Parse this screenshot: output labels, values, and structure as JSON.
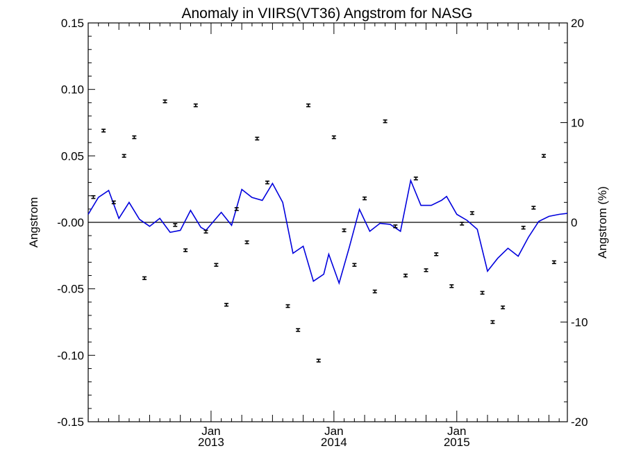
{
  "chart_data": {
    "type": "scatter",
    "title": "Anomaly in VIIRS(VT36) Angstrom for NASG",
    "ylabel_left": "Angstrom",
    "ylabel_right": "Angstrom (%)",
    "xlabel": "",
    "x_ticks": [
      {
        "month": "Jan",
        "year": "2013",
        "x": 2013.0
      },
      {
        "month": "Jan",
        "year": "2014",
        "x": 2014.0
      },
      {
        "month": "Jan",
        "year": "2015",
        "x": 2015.0
      }
    ],
    "xlim": [
      2012.0,
      2015.9
    ],
    "ylim_left": [
      -0.15,
      0.15
    ],
    "ylim_right": [
      -20,
      20
    ],
    "y_ticks_left": [
      "0.15",
      "0.10",
      "0.05",
      "-0.00",
      "-0.05",
      "-0.10",
      "-0.15"
    ],
    "y_ticks_right": [
      "20",
      "10",
      "0",
      "-10",
      "-20"
    ],
    "zero_line": 0,
    "error_bar_halfwidth": 0.001,
    "series": [
      {
        "kind": "points_with_error_bars",
        "color": "#000000",
        "points": [
          {
            "x": 2012.042,
            "y": 0.019
          },
          {
            "x": 2012.125,
            "y": 0.069
          },
          {
            "x": 2012.208,
            "y": 0.015
          },
          {
            "x": 2012.292,
            "y": 0.05
          },
          {
            "x": 2012.375,
            "y": 0.064
          },
          {
            "x": 2012.458,
            "y": -0.042
          },
          {
            "x": 2012.625,
            "y": 0.091
          },
          {
            "x": 2012.708,
            "y": -0.002
          },
          {
            "x": 2012.792,
            "y": -0.021
          },
          {
            "x": 2012.875,
            "y": 0.088
          },
          {
            "x": 2012.958,
            "y": -0.007
          },
          {
            "x": 2013.042,
            "y": -0.032
          },
          {
            "x": 2013.125,
            "y": -0.062
          },
          {
            "x": 2013.208,
            "y": 0.01
          },
          {
            "x": 2013.292,
            "y": -0.015
          },
          {
            "x": 2013.375,
            "y": 0.063
          },
          {
            "x": 2013.458,
            "y": 0.03
          },
          {
            "x": 2013.625,
            "y": -0.063
          },
          {
            "x": 2013.708,
            "y": -0.081
          },
          {
            "x": 2013.792,
            "y": 0.088
          },
          {
            "x": 2013.875,
            "y": -0.104
          },
          {
            "x": 2014.0,
            "y": 0.064
          },
          {
            "x": 2014.083,
            "y": -0.006
          },
          {
            "x": 2014.167,
            "y": -0.032
          },
          {
            "x": 2014.25,
            "y": 0.018
          },
          {
            "x": 2014.333,
            "y": -0.052
          },
          {
            "x": 2014.417,
            "y": 0.076
          },
          {
            "x": 2014.5,
            "y": -0.003
          },
          {
            "x": 2014.583,
            "y": -0.04
          },
          {
            "x": 2014.667,
            "y": 0.033
          },
          {
            "x": 2014.75,
            "y": -0.036
          },
          {
            "x": 2014.833,
            "y": -0.024
          },
          {
            "x": 2014.958,
            "y": -0.048
          },
          {
            "x": 2015.042,
            "y": -0.001
          },
          {
            "x": 2015.125,
            "y": 0.007
          },
          {
            "x": 2015.208,
            "y": -0.053
          },
          {
            "x": 2015.292,
            "y": -0.075
          },
          {
            "x": 2015.375,
            "y": -0.064
          },
          {
            "x": 2015.542,
            "y": -0.004
          },
          {
            "x": 2015.625,
            "y": 0.011
          },
          {
            "x": 2015.708,
            "y": 0.05
          },
          {
            "x": 2015.792,
            "y": -0.03
          }
        ]
      },
      {
        "kind": "line",
        "color": "#0000dd",
        "axis": "right",
        "points": [
          {
            "x": 2012.0,
            "y": 0.8
          },
          {
            "x": 2012.083,
            "y": 2.5
          },
          {
            "x": 2012.167,
            "y": 3.2
          },
          {
            "x": 2012.25,
            "y": 0.4
          },
          {
            "x": 2012.333,
            "y": 2.0
          },
          {
            "x": 2012.417,
            "y": 0.3
          },
          {
            "x": 2012.5,
            "y": -0.4
          },
          {
            "x": 2012.583,
            "y": 0.4
          },
          {
            "x": 2012.667,
            "y": -1.0
          },
          {
            "x": 2012.75,
            "y": -0.8
          },
          {
            "x": 2012.833,
            "y": 1.2
          },
          {
            "x": 2012.917,
            "y": -0.5
          },
          {
            "x": 2012.958,
            "y": -0.8
          },
          {
            "x": 2013.083,
            "y": 1.0
          },
          {
            "x": 2013.167,
            "y": -0.3
          },
          {
            "x": 2013.25,
            "y": 3.3
          },
          {
            "x": 2013.333,
            "y": 2.5
          },
          {
            "x": 2013.417,
            "y": 2.2
          },
          {
            "x": 2013.5,
            "y": 3.9
          },
          {
            "x": 2013.583,
            "y": 2.0
          },
          {
            "x": 2013.667,
            "y": -3.1
          },
          {
            "x": 2013.75,
            "y": -2.4
          },
          {
            "x": 2013.833,
            "y": -5.9
          },
          {
            "x": 2013.917,
            "y": -5.2
          },
          {
            "x": 2013.958,
            "y": -3.2
          },
          {
            "x": 2014.042,
            "y": -6.1
          },
          {
            "x": 2014.125,
            "y": -2.5
          },
          {
            "x": 2014.208,
            "y": 1.3
          },
          {
            "x": 2014.292,
            "y": -0.9
          },
          {
            "x": 2014.375,
            "y": -0.1
          },
          {
            "x": 2014.458,
            "y": -0.2
          },
          {
            "x": 2014.542,
            "y": -0.9
          },
          {
            "x": 2014.625,
            "y": 4.2
          },
          {
            "x": 2014.708,
            "y": 1.7
          },
          {
            "x": 2014.792,
            "y": 1.7
          },
          {
            "x": 2014.875,
            "y": 2.2
          },
          {
            "x": 2014.917,
            "y": 2.6
          },
          {
            "x": 2015.0,
            "y": 0.8
          },
          {
            "x": 2015.083,
            "y": 0.2
          },
          {
            "x": 2015.167,
            "y": -0.7
          },
          {
            "x": 2015.25,
            "y": -4.9
          },
          {
            "x": 2015.333,
            "y": -3.6
          },
          {
            "x": 2015.417,
            "y": -2.6
          },
          {
            "x": 2015.5,
            "y": -3.4
          },
          {
            "x": 2015.583,
            "y": -1.5
          },
          {
            "x": 2015.667,
            "y": 0.1
          },
          {
            "x": 2015.75,
            "y": 0.6
          },
          {
            "x": 2015.833,
            "y": 0.8
          },
          {
            "x": 2015.9,
            "y": 0.9
          }
        ]
      }
    ]
  }
}
